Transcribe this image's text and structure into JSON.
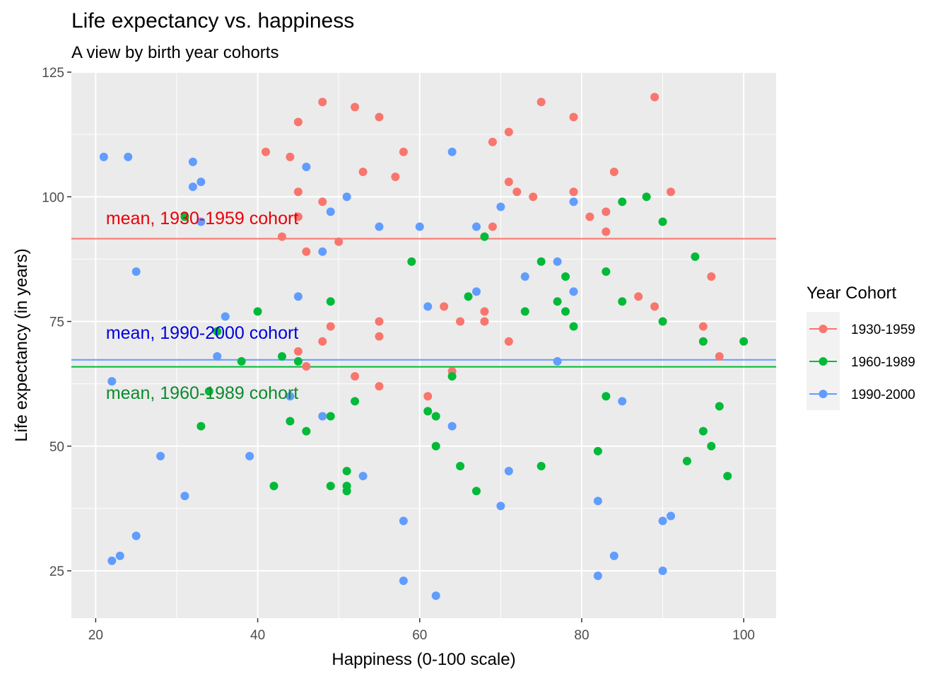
{
  "chart_data": {
    "type": "scatter",
    "title": "Life expectancy vs. happiness",
    "subtitle": "A view by birth year cohorts",
    "xlabel": "Happiness (0-100 scale)",
    "ylabel": "Life expectancy (in years)",
    "xlim": [
      17,
      104
    ],
    "ylim": [
      15.5,
      125
    ],
    "x_ticks": [
      20,
      40,
      60,
      80,
      100
    ],
    "y_ticks": [
      25,
      50,
      75,
      100,
      125
    ],
    "grid": true,
    "legend": {
      "title": "Year Cohort",
      "position": "right"
    },
    "series": [
      {
        "name": "1930-1959",
        "color": "#F8766D",
        "points": [
          [
            41,
            109
          ],
          [
            43,
            92
          ],
          [
            44,
            108
          ],
          [
            45,
            115
          ],
          [
            45,
            101
          ],
          [
            45,
            96
          ],
          [
            45,
            69
          ],
          [
            46,
            89
          ],
          [
            46,
            66
          ],
          [
            48,
            119
          ],
          [
            48,
            99
          ],
          [
            48,
            71
          ],
          [
            49,
            74
          ],
          [
            50,
            91
          ],
          [
            52,
            118
          ],
          [
            52,
            64
          ],
          [
            53,
            105
          ],
          [
            55,
            116
          ],
          [
            55,
            75
          ],
          [
            55,
            72
          ],
          [
            55,
            62
          ],
          [
            57,
            104
          ],
          [
            58,
            109
          ],
          [
            61,
            60
          ],
          [
            63,
            78
          ],
          [
            64,
            65
          ],
          [
            65,
            75
          ],
          [
            68,
            77
          ],
          [
            68,
            75
          ],
          [
            69,
            111
          ],
          [
            69,
            94
          ],
          [
            71,
            113
          ],
          [
            71,
            103
          ],
          [
            71,
            71
          ],
          [
            72,
            101
          ],
          [
            74,
            100
          ],
          [
            75,
            119
          ],
          [
            79,
            116
          ],
          [
            79,
            101
          ],
          [
            81,
            96
          ],
          [
            83,
            97
          ],
          [
            83,
            93
          ],
          [
            84,
            105
          ],
          [
            87,
            80
          ],
          [
            89,
            120
          ],
          [
            89,
            78
          ],
          [
            91,
            101
          ],
          [
            95,
            74
          ],
          [
            96,
            84
          ],
          [
            97,
            68
          ]
        ]
      },
      {
        "name": "1960-1989",
        "color": "#00BA38",
        "points": [
          [
            31,
            96
          ],
          [
            33,
            54
          ],
          [
            34,
            61
          ],
          [
            35,
            73
          ],
          [
            38,
            67
          ],
          [
            40,
            77
          ],
          [
            42,
            42
          ],
          [
            43,
            68
          ],
          [
            44,
            55
          ],
          [
            45,
            67
          ],
          [
            46,
            53
          ],
          [
            49,
            79
          ],
          [
            49,
            56
          ],
          [
            49,
            42
          ],
          [
            51,
            45
          ],
          [
            51,
            42
          ],
          [
            51,
            41
          ],
          [
            52,
            59
          ],
          [
            59,
            87
          ],
          [
            61,
            57
          ],
          [
            62,
            56
          ],
          [
            62,
            50
          ],
          [
            64,
            64
          ],
          [
            65,
            46
          ],
          [
            66,
            80
          ],
          [
            67,
            41
          ],
          [
            68,
            92
          ],
          [
            73,
            77
          ],
          [
            75,
            87
          ],
          [
            75,
            46
          ],
          [
            77,
            79
          ],
          [
            78,
            84
          ],
          [
            78,
            77
          ],
          [
            79,
            74
          ],
          [
            82,
            49
          ],
          [
            83,
            85
          ],
          [
            83,
            60
          ],
          [
            85,
            99
          ],
          [
            85,
            79
          ],
          [
            88,
            100
          ],
          [
            90,
            95
          ],
          [
            90,
            75
          ],
          [
            93,
            47
          ],
          [
            94,
            88
          ],
          [
            95,
            71
          ],
          [
            95,
            53
          ],
          [
            96,
            50
          ],
          [
            97,
            58
          ],
          [
            98,
            44
          ],
          [
            100,
            71
          ]
        ]
      },
      {
        "name": "1990-2000",
        "color": "#619CFF",
        "points": [
          [
            21,
            108
          ],
          [
            22,
            63
          ],
          [
            22,
            27
          ],
          [
            23,
            28
          ],
          [
            24,
            108
          ],
          [
            25,
            85
          ],
          [
            25,
            32
          ],
          [
            28,
            48
          ],
          [
            31,
            40
          ],
          [
            32,
            107
          ],
          [
            32,
            102
          ],
          [
            33,
            103
          ],
          [
            33,
            95
          ],
          [
            35,
            68
          ],
          [
            36,
            76
          ],
          [
            39,
            48
          ],
          [
            44,
            60
          ],
          [
            45,
            80
          ],
          [
            46,
            106
          ],
          [
            48,
            89
          ],
          [
            48,
            56
          ],
          [
            49,
            97
          ],
          [
            51,
            100
          ],
          [
            53,
            44
          ],
          [
            55,
            94
          ],
          [
            58,
            35
          ],
          [
            58,
            23
          ],
          [
            60,
            94
          ],
          [
            61,
            78
          ],
          [
            62,
            20
          ],
          [
            64,
            109
          ],
          [
            64,
            54
          ],
          [
            67,
            94
          ],
          [
            67,
            81
          ],
          [
            70,
            98
          ],
          [
            70,
            38
          ],
          [
            71,
            45
          ],
          [
            73,
            84
          ],
          [
            77,
            87
          ],
          [
            77,
            67
          ],
          [
            79,
            99
          ],
          [
            79,
            81
          ],
          [
            82,
            39
          ],
          [
            82,
            24
          ],
          [
            84,
            28
          ],
          [
            85,
            59
          ],
          [
            90,
            35
          ],
          [
            90,
            25
          ],
          [
            91,
            36
          ]
        ]
      }
    ],
    "mean_lines": [
      {
        "series": "1930-1959",
        "value": 91.6,
        "label": "mean, 1930-1959 cohort",
        "label_x": 21,
        "label_y": 94.5,
        "label_color": "#E8000B"
      },
      {
        "series": "1990-2000",
        "value": 67.3,
        "label": "mean, 1990-2000 cohort",
        "label_x": 21,
        "label_y": 71.5,
        "label_color": "#0000E0"
      },
      {
        "series": "1960-1989",
        "value": 65.9,
        "label": "mean, 1960-1989 cohort",
        "label_x": 21,
        "label_y": 59.5,
        "label_color": "#0D8A2E"
      }
    ]
  }
}
